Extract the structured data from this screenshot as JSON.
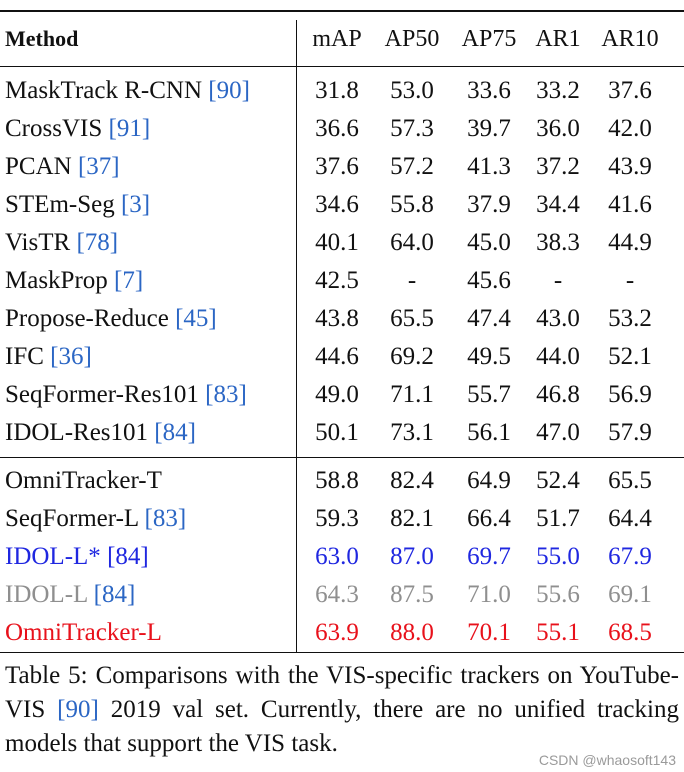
{
  "table": {
    "headers": [
      "Method",
      "mAP",
      "AP50",
      "AP75",
      "AR1",
      "AR10"
    ],
    "group1": [
      {
        "name": "MaskTrack R-CNN",
        "ref": "[90]",
        "values": [
          "31.8",
          "53.0",
          "33.6",
          "33.2",
          "37.6"
        ]
      },
      {
        "name": "CrossVIS",
        "ref": "[91]",
        "values": [
          "36.6",
          "57.3",
          "39.7",
          "36.0",
          "42.0"
        ]
      },
      {
        "name": "PCAN",
        "ref": "[37]",
        "values": [
          "37.6",
          "57.2",
          "41.3",
          "37.2",
          "43.9"
        ]
      },
      {
        "name": "STEm-Seg",
        "ref": "[3]",
        "values": [
          "34.6",
          "55.8",
          "37.9",
          "34.4",
          "41.6"
        ]
      },
      {
        "name": "VisTR",
        "ref": "[78]",
        "values": [
          "40.1",
          "64.0",
          "45.0",
          "38.3",
          "44.9"
        ]
      },
      {
        "name": "MaskProp",
        "ref": "[7]",
        "values": [
          "42.5",
          "-",
          "45.6",
          "-",
          "-"
        ]
      },
      {
        "name": "Propose-Reduce",
        "ref": "[45]",
        "values": [
          "43.8",
          "65.5",
          "47.4",
          "43.0",
          "53.2"
        ]
      },
      {
        "name": "IFC",
        "ref": "[36]",
        "values": [
          "44.6",
          "69.2",
          "49.5",
          "44.0",
          "52.1"
        ]
      },
      {
        "name": "SeqFormer-Res101",
        "ref": "[83]",
        "values": [
          "49.0",
          "71.1",
          "55.7",
          "46.8",
          "56.9"
        ]
      },
      {
        "name": "IDOL-Res101",
        "ref": "[84]",
        "values": [
          "50.1",
          "73.1",
          "56.1",
          "47.0",
          "57.9"
        ]
      }
    ],
    "group2": [
      {
        "name": "OmniTracker-T",
        "ref": "",
        "values": [
          "58.8",
          "82.4",
          "64.9",
          "52.4",
          "65.5"
        ],
        "style": "normal"
      },
      {
        "name": "SeqFormer-L",
        "ref": "[83]",
        "values": [
          "59.3",
          "82.1",
          "66.4",
          "51.7",
          "64.4"
        ],
        "style": "normal"
      },
      {
        "name": "IDOL-L*",
        "ref": "[84]",
        "values": [
          "63.0",
          "87.0",
          "69.7",
          "55.0",
          "67.9"
        ],
        "style": "blue"
      },
      {
        "name": "IDOL-L",
        "ref": "[84]",
        "values": [
          "64.3",
          "87.5",
          "71.0",
          "55.6",
          "69.1"
        ],
        "style": "gray"
      },
      {
        "name": "OmniTracker-L",
        "ref": "",
        "values": [
          "63.9",
          "88.0",
          "70.1",
          "55.1",
          "68.5"
        ],
        "style": "red"
      }
    ]
  },
  "caption": {
    "prefix": "Table 5: Comparisons with the VIS-specific trackers on YouTube-VIS ",
    "ref": "[90]",
    "suffix": " 2019 val set. Currently, there are no unified tracking models that support the VIS task."
  },
  "watermark": "CSDN @whaosoft143",
  "colors": {
    "ref": "#2b66c4",
    "blue": "#1f27e0",
    "gray": "#8f8f8f",
    "red": "#e8111b"
  }
}
